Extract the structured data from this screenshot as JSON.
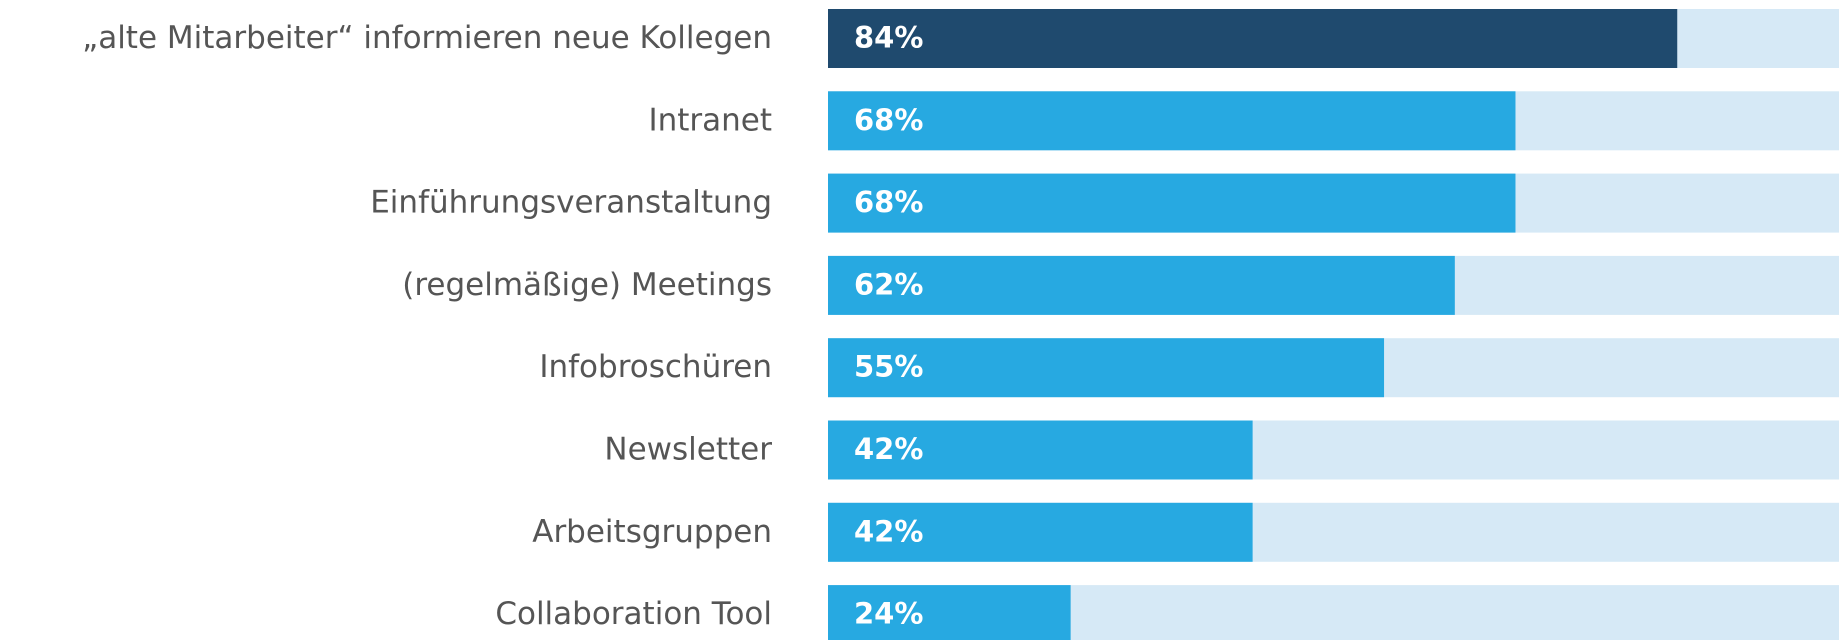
{
  "chart_data": {
    "type": "bar",
    "orientation": "horizontal",
    "categories": [
      "„alte Mitarbeiter“ informieren neue Kollegen",
      "Intranet",
      "Einführungsveranstaltung",
      "(regelmäßige) Meetings",
      "Infobroschüren",
      "Newsletter",
      "Arbeitsgruppen",
      "Collaboration Tool"
    ],
    "values": [
      84,
      68,
      68,
      62,
      55,
      42,
      42,
      24
    ],
    "value_labels": [
      "84%",
      "68%",
      "68%",
      "62%",
      "55%",
      "42%",
      "42%",
      "24%"
    ],
    "colors": [
      "#1f4a6e",
      "#27a9e1",
      "#27a9e1",
      "#27a9e1",
      "#27a9e1",
      "#27a9e1",
      "#27a9e1",
      "#27a9e1"
    ],
    "track_color": "#d6e9f6",
    "xlim": [
      0,
      100
    ]
  }
}
